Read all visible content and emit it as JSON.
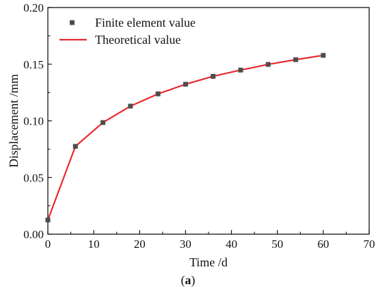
{
  "chart_data": {
    "type": "line",
    "title": "",
    "xlabel": "Time /d",
    "ylabel": "Displacement  /mm",
    "xlim": [
      0,
      70
    ],
    "ylim": [
      0.0,
      0.2
    ],
    "xticks": [
      0,
      10,
      20,
      30,
      40,
      50,
      60,
      70
    ],
    "xtick_labels": [
      "0",
      "10",
      "20",
      "30",
      "40",
      "50",
      "60",
      "70"
    ],
    "yticks": [
      0.0,
      0.05,
      0.1,
      0.15,
      0.2
    ],
    "ytick_labels": [
      "0.00",
      "0.05",
      "0.10",
      "0.15",
      "0.20"
    ],
    "grid": false,
    "legend_position": "top-left",
    "series": [
      {
        "name": "Finite element value",
        "kind": "scatter",
        "marker": "square",
        "color": "#4d4d4d",
        "x": [
          0,
          6,
          12,
          18,
          24,
          30,
          36,
          42,
          48,
          54,
          60
        ],
        "y": [
          0.0125,
          0.0775,
          0.0985,
          0.113,
          0.1238,
          0.1323,
          0.1393,
          0.1448,
          0.1498,
          0.154,
          0.1578
        ]
      },
      {
        "name": "Theoretical value",
        "kind": "line",
        "color": "#e8282b",
        "x": [
          0,
          6,
          12,
          18,
          24,
          30,
          36,
          42,
          48,
          54,
          60
        ],
        "y": [
          0.0125,
          0.0775,
          0.0985,
          0.113,
          0.1238,
          0.1323,
          0.1393,
          0.1448,
          0.1498,
          0.154,
          0.1578
        ]
      }
    ],
    "caption": "(a)"
  }
}
